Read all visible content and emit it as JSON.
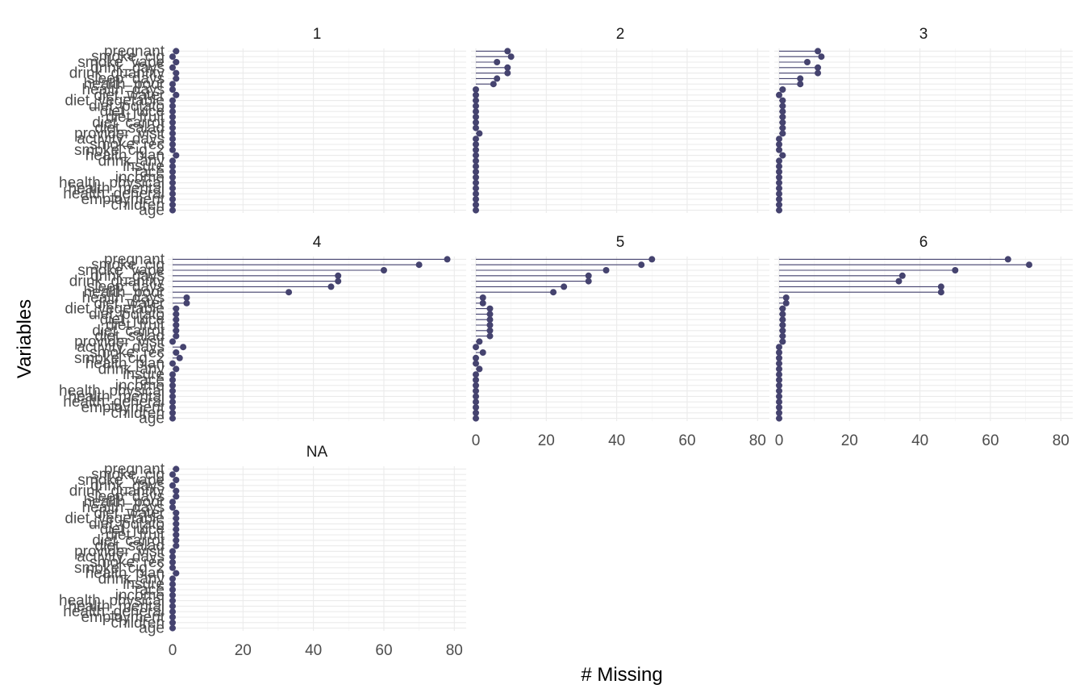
{
  "colors": {
    "mark": "#45436F",
    "grid": "#EBEBEB"
  },
  "chart_data": {
    "type": "lollipop",
    "facet_by": "cluster",
    "xlabel": "# Missing",
    "ylabel": "Variables",
    "xlim": [
      0,
      82
    ],
    "x_ticks": [
      0,
      20,
      40,
      60,
      80
    ],
    "variables": [
      "pregnant",
      "smoke_cig",
      "smoke_vape",
      "drink_days",
      "drink_quantity",
      "sleep_days",
      "health_poor",
      "health_days",
      "diet_water",
      "diet_vegetable",
      "diet_potato",
      "diet_juice",
      "diet_fruit",
      "diet_carrot",
      "diet_salad",
      "provider_visit",
      "activity_days",
      "smoke_rec",
      "smoke_cig_2",
      "health_plan",
      "drink_any",
      "insure",
      "race",
      "income",
      "health_physical",
      "health_mental",
      "health_general",
      "employment",
      "children",
      "age"
    ],
    "panels": [
      {
        "label": "1",
        "values": [
          1,
          0,
          1,
          0,
          1,
          1,
          0,
          0,
          1,
          0,
          0,
          0,
          0,
          0,
          0,
          0,
          0,
          0,
          0,
          1,
          0,
          0,
          0,
          0,
          0,
          0,
          0,
          0,
          0,
          0
        ]
      },
      {
        "label": "2",
        "values": [
          9,
          10,
          6,
          9,
          9,
          6,
          5,
          0,
          0,
          0,
          0,
          0,
          0,
          0,
          0,
          1,
          0,
          0,
          0,
          0,
          0,
          0,
          0,
          0,
          0,
          0,
          0,
          0,
          0,
          0
        ]
      },
      {
        "label": "3",
        "values": [
          11,
          12,
          8,
          11,
          11,
          6,
          6,
          1,
          0,
          1,
          1,
          1,
          1,
          1,
          1,
          1,
          0,
          0,
          0,
          1,
          0,
          0,
          0,
          0,
          0,
          0,
          0,
          0,
          0,
          0
        ]
      },
      {
        "label": "4",
        "values": [
          78,
          70,
          60,
          47,
          47,
          45,
          33,
          4,
          4,
          1,
          1,
          1,
          1,
          1,
          1,
          0,
          3,
          1,
          2,
          0,
          1,
          0,
          0,
          0,
          0,
          0,
          0,
          0,
          0,
          0
        ]
      },
      {
        "label": "5",
        "values": [
          50,
          47,
          37,
          32,
          32,
          25,
          22,
          2,
          2,
          4,
          4,
          4,
          4,
          4,
          4,
          1,
          0,
          2,
          0,
          0,
          1,
          0,
          0,
          0,
          0,
          0,
          0,
          0,
          0,
          0
        ]
      },
      {
        "label": "6",
        "values": [
          65,
          71,
          50,
          35,
          34,
          46,
          46,
          2,
          2,
          1,
          1,
          1,
          1,
          1,
          1,
          1,
          0,
          0,
          0,
          0,
          0,
          0,
          0,
          0,
          0,
          0,
          0,
          0,
          0,
          0
        ]
      },
      {
        "label": "NA",
        "values": [
          1,
          0,
          1,
          0,
          1,
          1,
          0,
          0,
          1,
          1,
          1,
          1,
          1,
          1,
          1,
          0,
          0,
          0,
          0,
          1,
          0,
          0,
          0,
          0,
          0,
          0,
          0,
          0,
          0,
          0
        ]
      }
    ]
  }
}
